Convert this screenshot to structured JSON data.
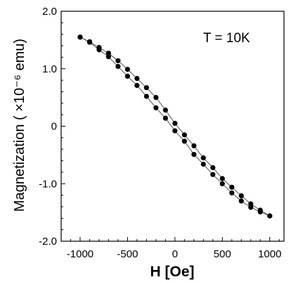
{
  "chart_data": {
    "type": "scatter",
    "title": "",
    "annotation": "T = 10K",
    "xlabel": "H [Oe]",
    "ylabel": "Magnetization  ( ×10⁻⁶ emu)",
    "xlim": [
      -1200,
      1150
    ],
    "ylim": [
      -2.0,
      2.0
    ],
    "x_ticks": [
      -1000,
      -500,
      0,
      500,
      1000
    ],
    "x_tick_labels": [
      "-1000",
      "-500",
      "0",
      "500",
      "1000"
    ],
    "y_ticks": [
      2.0,
      1.0,
      0,
      -1.0,
      -2.0
    ],
    "y_tick_labels": [
      "2.0",
      "1.0",
      "0",
      "-1.0",
      "-2.0"
    ],
    "grid": false,
    "legend": "none",
    "marker_color": "#000000",
    "line_color": "#555555",
    "series": [
      {
        "x": [
          -1000,
          -900,
          -800,
          -700,
          -600,
          -500,
          -400,
          -300,
          -200,
          -100,
          0,
          100,
          200,
          300,
          400,
          500,
          600,
          700,
          800,
          900,
          1000
        ],
        "values": [
          1.55,
          1.47,
          1.37,
          1.27,
          1.14,
          0.99,
          0.83,
          0.67,
          0.5,
          0.28,
          0.05,
          -0.15,
          -0.34,
          -0.55,
          -0.72,
          -0.91,
          -1.06,
          -1.21,
          -1.35,
          -1.46,
          -1.56
        ]
      },
      {
        "x": [
          -1000,
          -900,
          -800,
          -700,
          -600,
          -500,
          -400,
          -300,
          -200,
          -100,
          0,
          100,
          200,
          300,
          400,
          500,
          600,
          700,
          800,
          900,
          1000
        ],
        "values": [
          1.55,
          1.46,
          1.33,
          1.21,
          1.04,
          0.87,
          0.71,
          0.52,
          0.32,
          0.14,
          -0.08,
          -0.26,
          -0.49,
          -0.66,
          -0.84,
          -1.0,
          -1.16,
          -1.3,
          -1.41,
          -1.49,
          -1.56
        ]
      }
    ]
  }
}
